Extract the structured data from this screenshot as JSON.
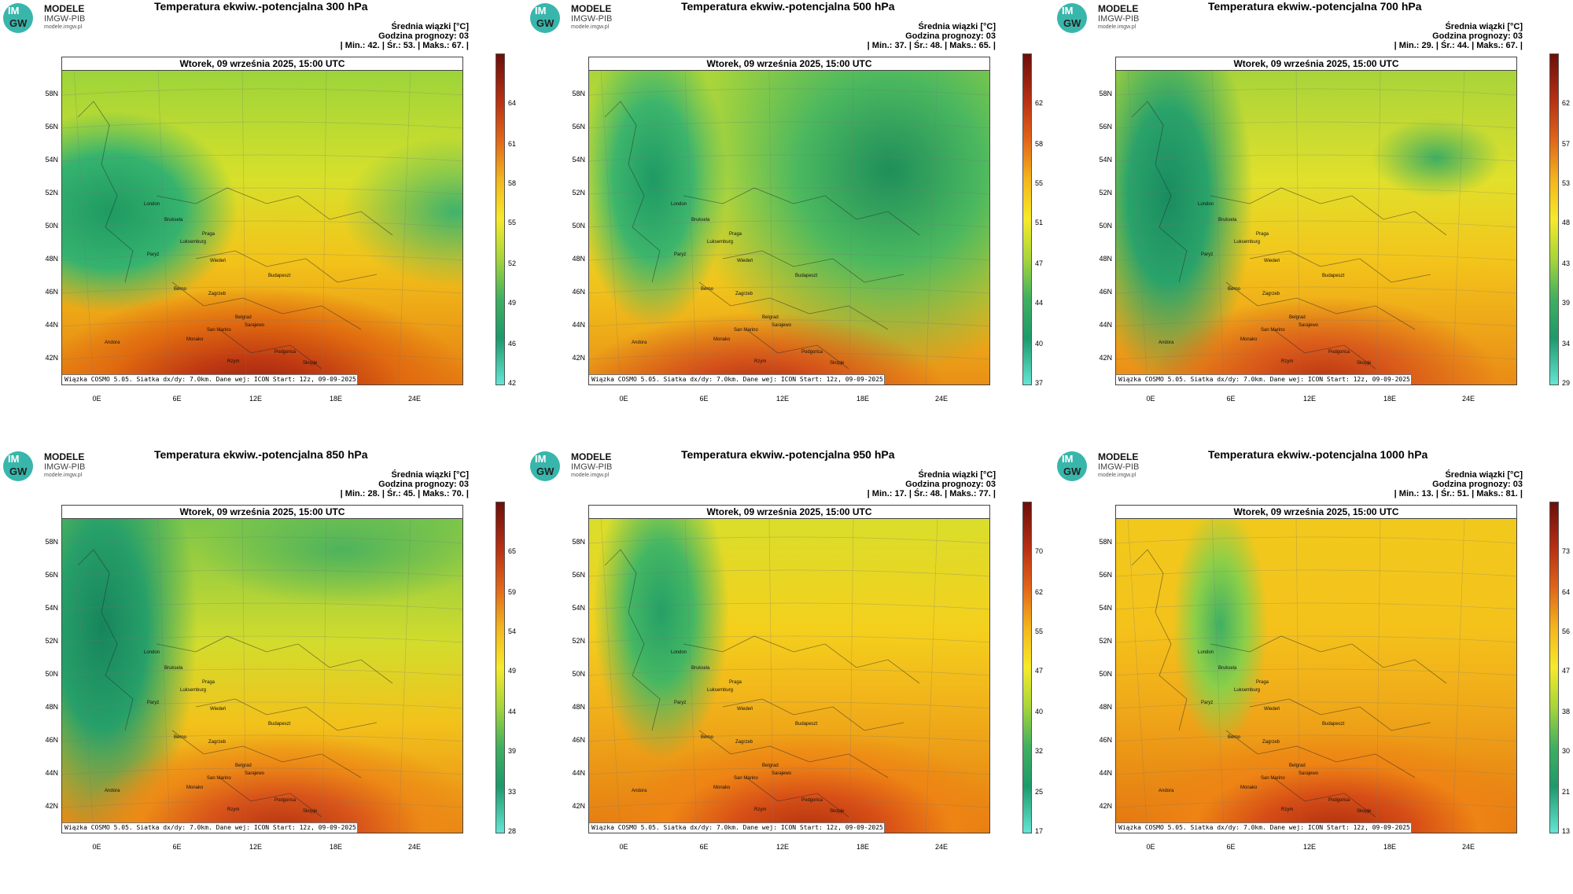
{
  "logo": {
    "brand": "MODELE",
    "sub": "IMGW-PIB",
    "url": "modele.imgw.pl",
    "circle_top": "IM",
    "circle_bottom": "GW"
  },
  "common": {
    "date": "Wtorek, 09 września 2025, 15:00 UTC",
    "footer": "Wiązka COSMO 5.05. Siatka dx/dy: 7.0km. Dane wej: ICON Start: 12z, 09-09-2025",
    "stats_heading": "Średnia wiązki [°C]",
    "forecast_hour": "Godzina prognozy: 03",
    "lat_labels": [
      "58N",
      "56N",
      "54N",
      "52N",
      "50N",
      "48N",
      "46N",
      "44N",
      "42N"
    ],
    "lon_labels": [
      "0E",
      "6E",
      "12E",
      "18E",
      "24E"
    ],
    "cities": [
      "London",
      "Bruksela",
      "Luksemburg",
      "Paryż",
      "Praga",
      "Wiedeń",
      "Budapeszt",
      "Berno",
      "Zagrzeb",
      "Belgrad",
      "San Marino",
      "Sarajewo",
      "Monako",
      "Andora",
      "Skopje",
      "Rzym",
      "Podgorica"
    ]
  },
  "panels": [
    {
      "title": "Temperatura ekwiw.-potencjalna 300 hPa",
      "stats": "| Min.:      42. | Śr.:      53. | Maks.:      67. |",
      "colorbar": [
        "64",
        "61",
        "58",
        "55",
        "52",
        "49",
        "46",
        "42"
      ],
      "palette": "p300"
    },
    {
      "title": "Temperatura ekwiw.-potencjalna 500 hPa",
      "stats": "| Min.:      37. | Śr.:      48. | Maks.:      65. |",
      "colorbar": [
        "62",
        "58",
        "55",
        "51",
        "47",
        "44",
        "40",
        "37"
      ],
      "palette": "p500"
    },
    {
      "title": "Temperatura ekwiw.-potencjalna 700 hPa",
      "stats": "| Min.:      29. | Śr.:      44. | Maks.:      67. |",
      "colorbar": [
        "62",
        "57",
        "53",
        "48",
        "43",
        "39",
        "34",
        "29"
      ],
      "palette": "p700"
    },
    {
      "title": "Temperatura ekwiw.-potencjalna 850 hPa",
      "stats": "| Min.:      28. | Śr.:      45. | Maks.:      70. |",
      "colorbar": [
        "65",
        "59",
        "54",
        "49",
        "44",
        "39",
        "33",
        "28"
      ],
      "palette": "p850"
    },
    {
      "title": "Temperatura ekwiw.-potencjalna 950 hPa",
      "stats": "| Min.:      17. | Śr.:      48. | Maks.:      77. |",
      "colorbar": [
        "70",
        "62",
        "55",
        "47",
        "40",
        "32",
        "25",
        "17"
      ],
      "palette": "p950"
    },
    {
      "title": "Temperatura ekwiw.-potencjalna 1000 hPa",
      "stats": "| Min.:      13. | Śr.:      51. | Maks.:      81. |",
      "colorbar": [
        "73",
        "64",
        "56",
        "47",
        "38",
        "30",
        "21",
        "13"
      ],
      "palette": "p1000"
    }
  ]
}
